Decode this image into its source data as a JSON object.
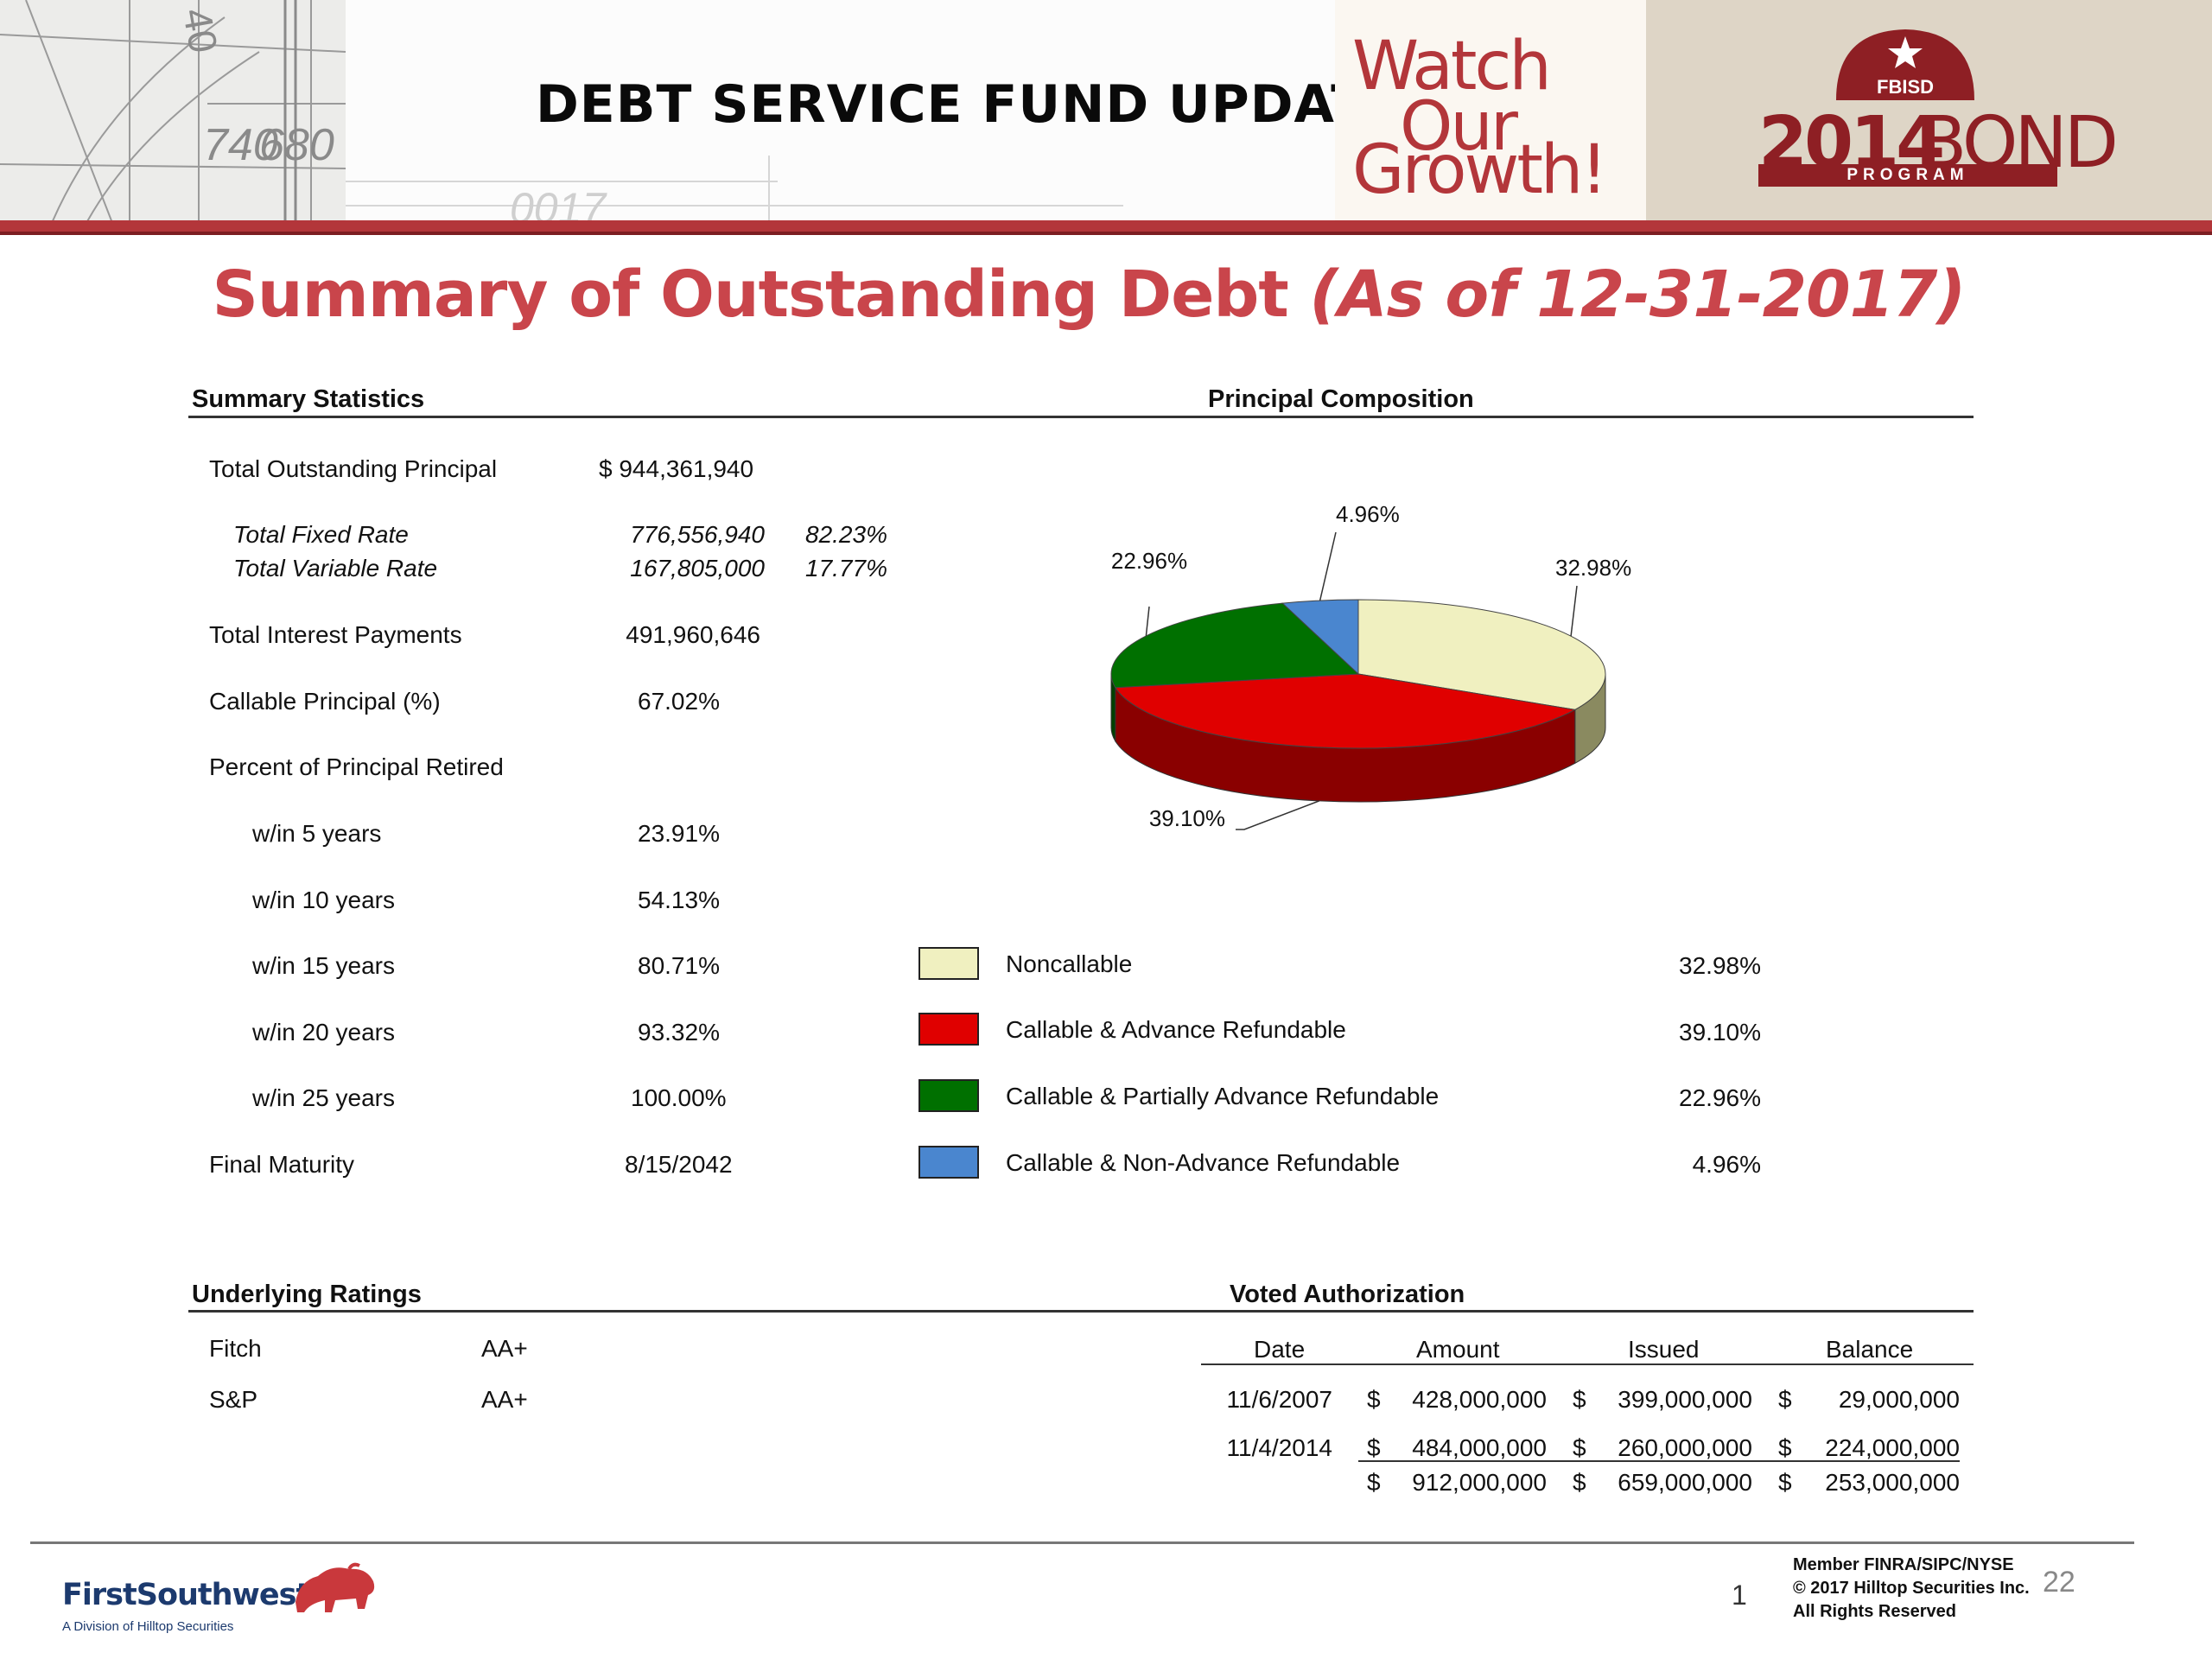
{
  "header": {
    "title": "DEBT SERVICE FUND UPDATE",
    "blueprint_marks": [
      "740",
      "680",
      "40",
      "0017"
    ],
    "growth_lines": [
      "Watch",
      "Our",
      "Growth!"
    ],
    "badge_text": "FBISD",
    "bond_year": "2014",
    "bond_word": "BOND",
    "bond_program": "PROGRAM",
    "accent_color": "#b3363a"
  },
  "slide_title": {
    "main": "Summary of Outstanding Debt ",
    "date": "(As of 12-31-2017)"
  },
  "summary_statistics": {
    "heading": "Summary Statistics",
    "rows": [
      {
        "label": "Total Outstanding Principal",
        "value": "$  944,361,940"
      },
      {
        "label": "Total Fixed Rate",
        "value": "776,556,940",
        "pct": "82.23%"
      },
      {
        "label": "Total Variable Rate",
        "value": "167,805,000",
        "pct": "17.77%"
      },
      {
        "label": "Total Interest Payments",
        "value": "491,960,646"
      },
      {
        "label": "Callable Principal (%)",
        "value": "67.02%"
      },
      {
        "label": "Percent of Principal Retired",
        "value": ""
      },
      {
        "label": "w/in 5 years",
        "value": "23.91%"
      },
      {
        "label": "w/in 10 years",
        "value": "54.13%"
      },
      {
        "label": "w/in 15 years",
        "value": "80.71%"
      },
      {
        "label": "w/in 20 years",
        "value": "93.32%"
      },
      {
        "label": "w/in 25 years",
        "value": "100.00%"
      },
      {
        "label": "Final Maturity",
        "value": "8/15/2042"
      }
    ]
  },
  "chart_data": {
    "type": "pie",
    "title": "Principal Composition",
    "categories": [
      "Noncallable",
      "Callable & Advance Refundable",
      "Callable & Partially Advance Refundable",
      "Callable & Non-Advance Refundable"
    ],
    "values": [
      32.98,
      39.1,
      22.96,
      4.96
    ],
    "labels": [
      "32.98%",
      "39.10%",
      "22.96%",
      "4.96%"
    ],
    "colors": [
      "#f0f0c0",
      "#e00000",
      "#007000",
      "#4a86cf"
    ],
    "side_colors": [
      "#8a8a60",
      "#8a0000",
      "#004000",
      "#2a5080"
    ],
    "legend": "bottom",
    "three_d": true
  },
  "underlying_ratings": {
    "heading": "Underlying Ratings",
    "rows": [
      {
        "agency": "Fitch",
        "rating": "AA+"
      },
      {
        "agency": "S&P",
        "rating": "AA+"
      }
    ]
  },
  "voted_authorization": {
    "heading": "Voted Authorization",
    "columns": [
      "Date",
      "Amount",
      "Issued",
      "Balance"
    ],
    "rows": [
      {
        "date": "11/6/2007",
        "amount": "428,000,000",
        "issued": "399,000,000",
        "balance": "29,000,000"
      },
      {
        "date": "11/4/2014",
        "amount": "484,000,000",
        "issued": "260,000,000",
        "balance": "224,000,000"
      }
    ],
    "total": {
      "amount": "912,000,000",
      "issued": "659,000,000",
      "balance": "253,000,000"
    },
    "currency": "$"
  },
  "footer": {
    "logo": "FirstSouthwest",
    "logo_sub": "A Division of Hilltop Securities",
    "page_num": "1",
    "disclaimer": [
      "Member FINRA/SIPC/NYSE",
      "© 2017 Hilltop Securities Inc.",
      "All Rights Reserved"
    ],
    "slide_num": "22"
  }
}
